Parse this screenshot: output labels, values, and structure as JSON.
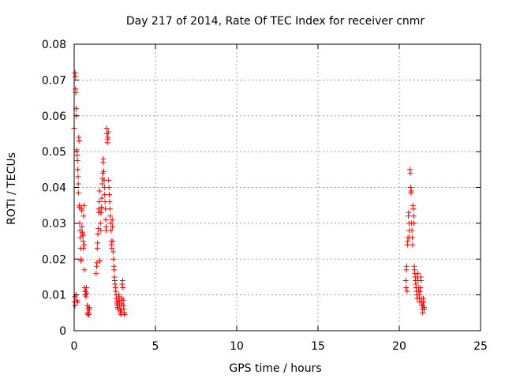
{
  "chart_data": {
    "type": "scatter",
    "title": "Day 217 of 2014, Rate Of TEC Index for receiver cnmr",
    "xlabel": "GPS time / hours",
    "ylabel": "ROTI / TECUs",
    "xlim": [
      0,
      25
    ],
    "ylim": [
      0,
      0.08
    ],
    "x_ticks": [
      0,
      5,
      10,
      15,
      20,
      25
    ],
    "x_tick_labels": [
      "0",
      "5",
      "10",
      "15",
      "20",
      "25"
    ],
    "y_ticks": [
      0,
      0.01,
      0.02,
      0.03,
      0.04,
      0.05,
      0.06,
      0.07,
      0.08
    ],
    "y_tick_labels": [
      "0",
      "0.01",
      "0.02",
      "0.03",
      "0.04",
      "0.05",
      "0.06",
      "0.07",
      "0.08"
    ],
    "grid": true,
    "marker": "plus",
    "point_color": "#ff0000",
    "series": [
      {
        "points": [
          [
            0.0,
            0.0565
          ],
          [
            0.02,
            0.008
          ],
          [
            0.04,
            0.0095
          ],
          [
            0.05,
            0.007
          ],
          [
            0.06,
            0.072
          ],
          [
            0.08,
            0.071
          ],
          [
            0.09,
            0.0675
          ],
          [
            0.1,
            0.0665
          ],
          [
            0.11,
            0.01
          ],
          [
            0.12,
            0.062
          ],
          [
            0.14,
            0.06
          ],
          [
            0.15,
            0.0085
          ],
          [
            0.16,
            0.0505
          ],
          [
            0.18,
            0.049
          ],
          [
            0.2,
            0.0475
          ],
          [
            0.21,
            0.008
          ],
          [
            0.22,
            0.045
          ],
          [
            0.24,
            0.043
          ],
          [
            0.25,
            0.041
          ],
          [
            0.26,
            0.0385
          ],
          [
            0.28,
            0.054
          ],
          [
            0.3,
            0.053
          ],
          [
            0.32,
            0.035
          ],
          [
            0.33,
            0.0345
          ],
          [
            0.34,
            0.03
          ],
          [
            0.36,
            0.028
          ],
          [
            0.38,
            0.026
          ],
          [
            0.4,
            0.023
          ],
          [
            0.42,
            0.0195
          ],
          [
            0.43,
            0.02
          ],
          [
            0.45,
            0.034
          ],
          [
            0.47,
            0.0335
          ],
          [
            0.48,
            0.029
          ],
          [
            0.5,
            0.0275
          ],
          [
            0.52,
            0.027
          ],
          [
            0.53,
            0.0265
          ],
          [
            0.55,
            0.025
          ],
          [
            0.57,
            0.023
          ],
          [
            0.58,
            0.032
          ],
          [
            0.6,
            0.035
          ],
          [
            0.62,
            0.024
          ],
          [
            0.63,
            0.017
          ],
          [
            0.65,
            0.012
          ],
          [
            0.67,
            0.011
          ],
          [
            0.68,
            0.01
          ],
          [
            0.7,
            0.011
          ],
          [
            0.72,
            0.01
          ],
          [
            0.73,
            0.0095
          ],
          [
            0.75,
            0.012
          ],
          [
            0.77,
            0.0105
          ],
          [
            0.8,
            0.007
          ],
          [
            0.82,
            0.005
          ],
          [
            0.84,
            0.0045
          ],
          [
            0.86,
            0.006
          ],
          [
            0.88,
            0.005
          ],
          [
            0.9,
            0.0045
          ],
          [
            0.92,
            0.0065
          ],
          [
            0.95,
            0.006
          ],
          [
            1.35,
            0.016
          ],
          [
            1.38,
            0.018
          ],
          [
            1.4,
            0.019
          ],
          [
            1.42,
            0.023
          ],
          [
            1.44,
            0.0245
          ],
          [
            1.46,
            0.027
          ],
          [
            1.48,
            0.0285
          ],
          [
            1.5,
            0.033
          ],
          [
            1.52,
            0.034
          ],
          [
            1.54,
            0.036
          ],
          [
            1.56,
            0.039
          ],
          [
            1.58,
            0.0195
          ],
          [
            1.6,
            0.033
          ],
          [
            1.62,
            0.03
          ],
          [
            1.64,
            0.028
          ],
          [
            1.66,
            0.033
          ],
          [
            1.68,
            0.0345
          ],
          [
            1.7,
            0.037
          ],
          [
            1.72,
            0.041
          ],
          [
            1.74,
            0.0425
          ],
          [
            1.76,
            0.044
          ],
          [
            1.78,
            0.047
          ],
          [
            1.8,
            0.048
          ],
          [
            1.82,
            0.0445
          ],
          [
            1.84,
            0.042
          ],
          [
            1.86,
            0.04
          ],
          [
            1.88,
            0.038
          ],
          [
            1.9,
            0.036
          ],
          [
            1.92,
            0.034
          ],
          [
            1.94,
            0.031
          ],
          [
            1.96,
            0.029
          ],
          [
            1.98,
            0.028
          ],
          [
            2.0,
            0.0565
          ],
          [
            2.02,
            0.055
          ],
          [
            2.04,
            0.0525
          ],
          [
            2.06,
            0.0535
          ],
          [
            2.08,
            0.054
          ],
          [
            2.1,
            0.0555
          ],
          [
            2.12,
            0.042
          ],
          [
            2.14,
            0.04
          ],
          [
            2.16,
            0.038
          ],
          [
            2.18,
            0.036
          ],
          [
            2.2,
            0.034
          ],
          [
            2.22,
            0.032
          ],
          [
            2.24,
            0.03
          ],
          [
            2.26,
            0.028
          ],
          [
            2.28,
            0.025
          ],
          [
            2.3,
            0.024
          ],
          [
            2.32,
            0.023
          ],
          [
            2.34,
            0.031
          ],
          [
            2.36,
            0.029
          ],
          [
            2.38,
            0.025
          ],
          [
            2.4,
            0.022
          ],
          [
            2.42,
            0.02
          ],
          [
            2.44,
            0.018
          ],
          [
            2.46,
            0.017
          ],
          [
            2.48,
            0.015
          ],
          [
            2.5,
            0.014
          ],
          [
            2.52,
            0.013
          ],
          [
            2.54,
            0.012
          ],
          [
            2.56,
            0.011
          ],
          [
            2.58,
            0.01
          ],
          [
            2.6,
            0.009
          ],
          [
            2.62,
            0.008
          ],
          [
            2.64,
            0.0075
          ],
          [
            2.66,
            0.007
          ],
          [
            2.68,
            0.0065
          ],
          [
            2.7,
            0.006
          ],
          [
            2.72,
            0.0085
          ],
          [
            2.74,
            0.01
          ],
          [
            2.76,
            0.0095
          ],
          [
            2.78,
            0.008
          ],
          [
            2.8,
            0.007
          ],
          [
            2.82,
            0.006
          ],
          [
            2.84,
            0.0055
          ],
          [
            2.86,
            0.005
          ],
          [
            2.88,
            0.0045
          ],
          [
            2.9,
            0.006
          ],
          [
            2.92,
            0.0075
          ],
          [
            2.94,
            0.009
          ],
          [
            2.96,
            0.013
          ],
          [
            2.98,
            0.014
          ],
          [
            3.0,
            0.012
          ],
          [
            3.02,
            0.0085
          ],
          [
            3.04,
            0.007
          ],
          [
            3.06,
            0.006
          ],
          [
            3.08,
            0.005
          ],
          [
            3.1,
            0.0045
          ],
          [
            20.4,
            0.014
          ],
          [
            20.42,
            0.012
          ],
          [
            20.44,
            0.017
          ],
          [
            20.46,
            0.018
          ],
          [
            20.48,
            0.011
          ],
          [
            20.5,
            0.024
          ],
          [
            20.52,
            0.025
          ],
          [
            20.54,
            0.026
          ],
          [
            20.56,
            0.032
          ],
          [
            20.58,
            0.033
          ],
          [
            20.6,
            0.03
          ],
          [
            20.62,
            0.028
          ],
          [
            20.64,
            0.026
          ],
          [
            20.66,
            0.045
          ],
          [
            20.68,
            0.044
          ],
          [
            20.7,
            0.04
          ],
          [
            20.72,
            0.0385
          ],
          [
            20.74,
            0.039
          ],
          [
            20.76,
            0.03
          ],
          [
            20.78,
            0.028
          ],
          [
            20.8,
            0.026
          ],
          [
            20.82,
            0.024
          ],
          [
            20.84,
            0.035
          ],
          [
            20.86,
            0.034
          ],
          [
            20.88,
            0.032
          ],
          [
            20.9,
            0.03
          ],
          [
            20.92,
            0.018
          ],
          [
            20.94,
            0.017
          ],
          [
            20.96,
            0.016
          ],
          [
            20.98,
            0.015
          ],
          [
            21.0,
            0.014
          ],
          [
            21.02,
            0.013
          ],
          [
            21.04,
            0.012
          ],
          [
            21.06,
            0.011
          ],
          [
            21.08,
            0.01
          ],
          [
            21.1,
            0.009
          ],
          [
            21.12,
            0.015
          ],
          [
            21.14,
            0.016
          ],
          [
            21.16,
            0.014
          ],
          [
            21.18,
            0.012
          ],
          [
            21.2,
            0.011
          ],
          [
            21.22,
            0.01
          ],
          [
            21.24,
            0.009
          ],
          [
            21.26,
            0.008
          ],
          [
            21.28,
            0.011
          ],
          [
            21.3,
            0.012
          ],
          [
            21.32,
            0.015
          ],
          [
            21.34,
            0.014
          ],
          [
            21.36,
            0.009
          ],
          [
            21.38,
            0.008
          ],
          [
            21.4,
            0.007
          ],
          [
            21.42,
            0.006
          ],
          [
            21.44,
            0.005
          ],
          [
            21.46,
            0.007
          ],
          [
            21.48,
            0.009
          ],
          [
            21.5,
            0.008
          ],
          [
            21.52,
            0.0065
          ],
          [
            21.54,
            0.006
          ]
        ]
      }
    ]
  }
}
